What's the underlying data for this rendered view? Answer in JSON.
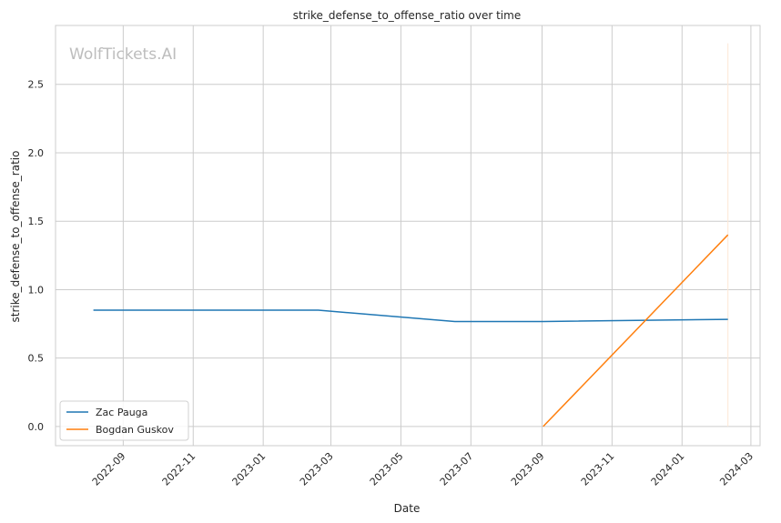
{
  "watermark": "WolfTickets.AI",
  "chart_data": {
    "type": "line",
    "title": "strike_defense_to_offense_ratio over time",
    "xlabel": "Date",
    "ylabel": "strike_defense_to_offense_ratio",
    "ylim": [
      -0.14,
      2.93
    ],
    "xlim": [
      "2022-07-04",
      "2024-03-09"
    ],
    "y_ticks": [
      0.0,
      0.5,
      1.0,
      1.5,
      2.0,
      2.5
    ],
    "y_tick_labels": [
      "0.0",
      "0.5",
      "1.0",
      "1.5",
      "2.0",
      "2.5"
    ],
    "x_ticks": [
      "2022-09-01",
      "2022-11-01",
      "2023-01-01",
      "2023-03-01",
      "2023-05-01",
      "2023-07-01",
      "2023-09-01",
      "2023-11-01",
      "2024-01-01",
      "2024-03-01"
    ],
    "x_tick_labels": [
      "2022-09",
      "2022-11",
      "2023-01",
      "2023-03",
      "2023-05",
      "2023-07",
      "2023-09",
      "2023-11",
      "2024-01",
      "2024-03"
    ],
    "grid": true,
    "legend_position": "lower-left",
    "series": [
      {
        "name": "Zac Pauga",
        "color": "#1f77b4",
        "points": [
          {
            "x": "2022-08-06",
            "y": 0.85
          },
          {
            "x": "2023-02-18",
            "y": 0.85
          },
          {
            "x": "2023-06-17",
            "y": 0.767
          },
          {
            "x": "2023-09-02",
            "y": 0.767
          },
          {
            "x": "2024-02-10",
            "y": 0.783
          }
        ]
      },
      {
        "name": "Bogdan Guskov",
        "color": "#ff7f0e",
        "points": [
          {
            "x": "2023-09-02",
            "y": 0.0
          },
          {
            "x": "2024-02-10",
            "y": 1.4
          }
        ]
      }
    ],
    "annotations": [
      {
        "type": "vline",
        "x": "2024-02-10",
        "y_from": 0.0,
        "y_to": 2.8,
        "color": "#fde8d6"
      }
    ]
  }
}
